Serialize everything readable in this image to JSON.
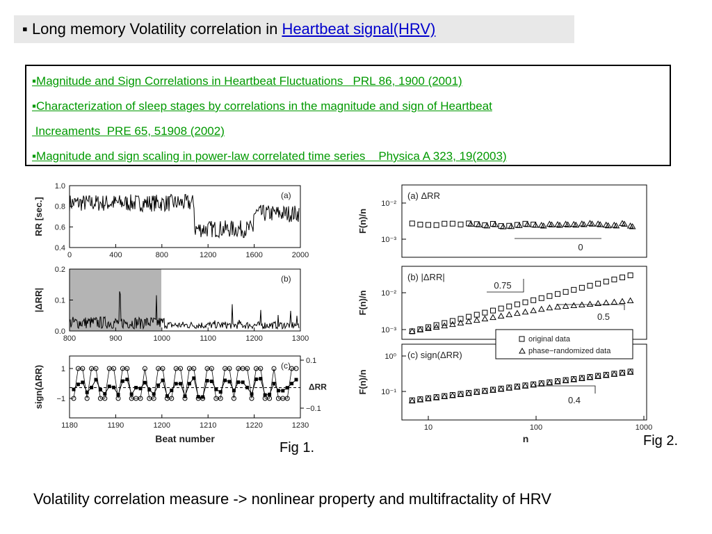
{
  "header": {
    "bullet": "▪",
    "title": "Long memory Volatility correlation in ",
    "link": "Heartbeat signal(HRV)"
  },
  "references": [
    {
      "lines": [
        "▪Magnitude and Sign Correlations in Heartbeat Fluctuations   PRL 86, 1900 (2001)"
      ]
    },
    {
      "lines": [
        "▪Characterization of sleep stages by correlations in the magnitude and sign of Heartbeat",
        " Increaments  PRE 65, 51908 (2002)"
      ]
    },
    {
      "lines": [
        "▪Magnitude and sign scaling in power-law correlated time series    Physica A 323, 19(2003)"
      ]
    }
  ],
  "fig1": {
    "caption": "Fig 1.",
    "xlabel": "Beat number",
    "panels": [
      {
        "tag": "(a)",
        "ylabel": "RR [sec.]",
        "yticks": [
          "1.0",
          "0.8",
          "0.6",
          "0.4"
        ],
        "xticks": [
          "0",
          "400",
          "800",
          "1200",
          "1600",
          "2000"
        ]
      },
      {
        "tag": "(b)",
        "ylabel": "|ΔRR|",
        "yticks": [
          "0.2",
          "0.1",
          "0.0"
        ],
        "xticks": [
          "800",
          "900",
          "1000",
          "1100",
          "1200",
          "1300"
        ]
      },
      {
        "tag": "(c)",
        "ylabel": "sign(ΔRR)",
        "yticks": [
          "1",
          "−1"
        ],
        "y2label": "ΔRR",
        "y2ticks": [
          "0.1",
          "−0.1"
        ],
        "xticks": [
          "1180",
          "1190",
          "1200",
          "1210",
          "1220",
          "1230"
        ]
      }
    ]
  },
  "fig2": {
    "caption": "Fig 2.",
    "ylabel": "F(n)/n",
    "xlabel": "n",
    "xticks": [
      "10",
      "100",
      "1000"
    ],
    "panels": [
      {
        "tag": "(a) ΔRR",
        "yticks": [
          "10⁻²",
          "10⁻³"
        ],
        "annotations": [
          "0"
        ]
      },
      {
        "tag": "(b) |ΔRR|",
        "yticks": [
          "10⁻²",
          "10⁻³"
        ],
        "annotations": [
          "0.75",
          "0.5"
        ]
      },
      {
        "tag": "(c) sign(ΔRR)",
        "yticks": [
          "10⁰",
          "10⁻¹"
        ],
        "annotations": [
          "0.4"
        ]
      }
    ],
    "legend": [
      "original data",
      "phase−randomized data"
    ]
  },
  "footer": "Volatility correlation measure -> nonlinear property and multifractality of HRV"
}
